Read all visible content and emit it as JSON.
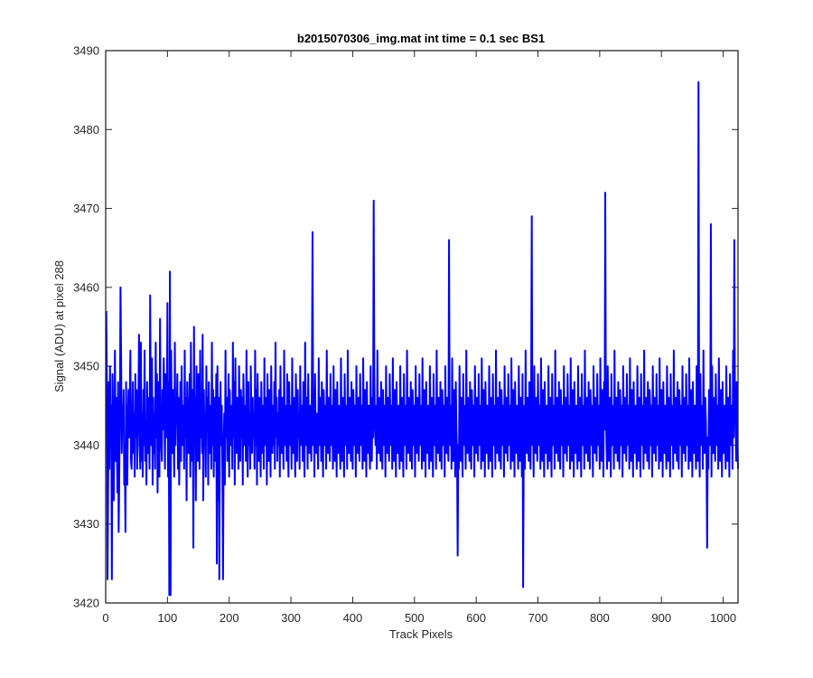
{
  "chart_data": {
    "type": "line",
    "title": "b2015070306_img.mat int time = 0.1 sec   BS1",
    "xlabel": "Track Pixels",
    "ylabel": "Signal (ADU) at pixel 288",
    "xlim": [
      0,
      1024
    ],
    "ylim": [
      3420,
      3490
    ],
    "xticks": [
      0,
      100,
      200,
      300,
      400,
      500,
      600,
      700,
      800,
      900,
      1000
    ],
    "yticks": [
      3420,
      3430,
      3440,
      3450,
      3460,
      3470,
      3480,
      3490
    ],
    "grid": false,
    "line_color": "#0000ff",
    "series": [
      {
        "x_start": 1,
        "x_step": 1,
        "values": [
          3457,
          3447,
          3423,
          3435,
          3448,
          3437,
          3450,
          3440,
          3445,
          3442,
          3449,
          3438,
          3433,
          3444,
          3452,
          3438,
          3446,
          3441,
          3434,
          3448,
          3429,
          3436,
          3444,
          3460,
          3451,
          3439,
          3445,
          3442,
          3447,
          3435,
          3438,
          3429,
          3448,
          3440,
          3435,
          3443,
          3447,
          3441,
          3446,
          3452,
          3438,
          3437,
          3443,
          3448,
          3439,
          3444,
          3436,
          3449,
          3441,
          3447,
          3437,
          3442,
          3446,
          3454,
          3440,
          3437,
          3453,
          3438,
          3444,
          3436,
          3447,
          3440,
          3452,
          3438,
          3443,
          3435,
          3448,
          3441,
          3439,
          3446,
          3437,
          3459,
          3445,
          3440,
          3451,
          3435,
          3446,
          3439,
          3444,
          3437,
          3453,
          3441,
          3449,
          3434,
          3448,
          3441,
          3436,
          3456,
          3443,
          3440,
          3438,
          3447,
          3442,
          3451,
          3445,
          3437,
          3449,
          3441,
          3444,
          3458,
          3436,
          3448,
          3440,
          3462,
          3421,
          3452,
          3444,
          3439,
          3447,
          3441,
          3436,
          3453,
          3440,
          3445,
          3443,
          3449,
          3437,
          3446,
          3435,
          3441,
          3448,
          3438,
          3450,
          3443,
          3440,
          3445,
          3437,
          3452,
          3441,
          3446,
          3433,
          3448,
          3441,
          3439,
          3444,
          3449,
          3436,
          3453,
          3442,
          3438,
          3447,
          3427,
          3455,
          3440,
          3446,
          3433,
          3450,
          3441,
          3438,
          3449,
          3443,
          3437,
          3452,
          3441,
          3445,
          3439,
          3454,
          3433,
          3447,
          3440,
          3444,
          3436,
          3450,
          3442,
          3446,
          3435,
          3448,
          3441,
          3439,
          3445,
          3437,
          3453,
          3440,
          3447,
          3436,
          3446,
          3442,
          3438,
          3449,
          3425,
          3450,
          3433,
          3446,
          3423,
          3442,
          3448,
          3440,
          3445,
          3437,
          3451,
          3439,
          3444,
          3435,
          3452,
          3441,
          3446,
          3438,
          3442,
          3449,
          3436,
          3447,
          3440,
          3443,
          3445,
          3437,
          3453,
          3441,
          3448,
          3435,
          3451,
          3441,
          3439,
          3446,
          3444,
          3437,
          3450,
          3442,
          3438,
          3447,
          3441,
          3446,
          3435,
          3449,
          3443,
          3440,
          3445,
          3438,
          3452,
          3441,
          3436,
          3448,
          3440,
          3444,
          3437,
          3450,
          3443,
          3439,
          3446,
          3441,
          3444,
          3437,
          3452,
          3440,
          3447,
          3435,
          3449,
          3443,
          3438,
          3446,
          3441,
          3436,
          3448,
          3442,
          3439,
          3445,
          3437,
          3451,
          3440,
          3443,
          3446,
          3435,
          3449,
          3441,
          3438,
          3447,
          3444,
          3436,
          3450,
          3442,
          3439,
          3445,
          3440,
          3448,
          3437,
          3453,
          3441,
          3446,
          3438,
          3444,
          3440,
          3447,
          3436,
          3450,
          3443,
          3439,
          3446,
          3441,
          3437,
          3452,
          3440,
          3445,
          3443,
          3438,
          3449,
          3441,
          3436,
          3448,
          3444,
          3440,
          3445,
          3437,
          3451,
          3442,
          3439,
          3446,
          3440,
          3436,
          3449,
          3443,
          3438,
          3447,
          3441,
          3444,
          3437,
          3450,
          3442,
          3440,
          3445,
          3438,
          3448,
          3441,
          3436,
          3453,
          3444,
          3440,
          3446,
          3437,
          3449,
          3442,
          3439,
          3445,
          3441,
          3438,
          3450,
          3443,
          3440,
          3447,
          3436,
          3449,
          3442,
          3439,
          3444,
          3441,
          3437,
          3451,
          3440,
          3446,
          3443,
          3438,
          3448,
          3441,
          3436,
          3447,
          3444,
          3440,
          3445,
          3437,
          3452,
          3442,
          3439,
          3446,
          3441,
          3438,
          3449,
          3443,
          3440,
          3445,
          3437,
          3450,
          3441,
          3438,
          3447,
          3444,
          3436,
          3448,
          3442,
          3439,
          3445,
          3440,
          3437,
          3451,
          3443,
          3438,
          3446,
          3441,
          3436,
          3449,
          3442,
          3440,
          3445,
          3437,
          3452,
          3441,
          3439,
          3446,
          3443,
          3438,
          3448,
          3441,
          3437,
          3447,
          3444,
          3440,
          3445,
          3436,
          3450,
          3442,
          3439,
          3446,
          3441,
          3438,
          3449,
          3443,
          3440,
          3445,
          3437,
          3451,
          3441,
          3438,
          3447,
          3444,
          3436,
          3448,
          3442,
          3439,
          3445,
          3440,
          3437,
          3450,
          3443,
          3438,
          3446,
          3441,
          3436,
          3449,
          3442,
          3440,
          3445,
          3437,
          3452,
          3441,
          3439,
          3446,
          3443,
          3438,
          3448,
          3441,
          3437,
          3447,
          3444,
          3440,
          3445,
          3436,
          3450,
          3442,
          3439,
          3446,
          3441,
          3438,
          3449,
          3443,
          3440,
          3445,
          3437,
          3451,
          3441,
          3438,
          3447,
          3444,
          3436,
          3448,
          3442,
          3439,
          3445,
          3440,
          3437,
          3450,
          3443,
          3438,
          3446,
          3441,
          3436,
          3449,
          3442,
          3440,
          3445,
          3437,
          3452,
          3441,
          3439,
          3446,
          3443,
          3438,
          3448,
          3441,
          3437,
          3447,
          3444,
          3440,
          3445,
          3436,
          3450,
          3442,
          3439,
          3446,
          3441,
          3438,
          3449,
          3443,
          3440,
          3445,
          3437,
          3451,
          3441,
          3438,
          3447,
          3444,
          3436,
          3448,
          3442,
          3439,
          3445,
          3440,
          3437,
          3450,
          3443,
          3438,
          3446,
          3441,
          3436,
          3449,
          3442,
          3440,
          3445,
          3437,
          3452,
          3441,
          3439,
          3446,
          3443,
          3438,
          3448,
          3441,
          3437,
          3447,
          3444,
          3440,
          3445,
          3436,
          3450,
          3442,
          3439,
          3446,
          3441,
          3438,
          3449,
          3443,
          3440,
          3445,
          3437,
          3451,
          3441,
          3438,
          3447,
          3444,
          3436,
          3448,
          3442,
          3439,
          3445,
          3440,
          3437,
          3450,
          3443,
          3438,
          3446,
          3441,
          3436,
          3449,
          3442,
          3440,
          3445,
          3437,
          3452,
          3441,
          3439,
          3446,
          3443,
          3438,
          3448,
          3441,
          3437,
          3447,
          3444,
          3440,
          3445,
          3436,
          3450,
          3442,
          3439,
          3446,
          3441,
          3438,
          3449,
          3443,
          3440,
          3445,
          3437,
          3451,
          3441,
          3438,
          3447,
          3444,
          3436,
          3448,
          3442,
          3439,
          3445,
          3440,
          3437,
          3450,
          3443,
          3438,
          3446,
          3441,
          3436,
          3449,
          3442,
          3440,
          3445,
          3437,
          3452,
          3441,
          3439,
          3446,
          3443,
          3438,
          3448,
          3441,
          3437,
          3447,
          3444,
          3440,
          3445,
          3436,
          3450,
          3442,
          3439,
          3446,
          3441,
          3438,
          3449,
          3443,
          3440,
          3445,
          3437,
          3451,
          3441,
          3438,
          3447,
          3444,
          3436,
          3448,
          3442,
          3439,
          3445,
          3440,
          3437,
          3450,
          3443,
          3438,
          3446,
          3441,
          3436,
          3449,
          3442,
          3440,
          3445,
          3437,
          3452,
          3441,
          3439,
          3446,
          3443,
          3438,
          3448,
          3441,
          3437,
          3447,
          3444,
          3440,
          3445,
          3436,
          3450,
          3442,
          3439,
          3446,
          3441,
          3438,
          3449,
          3443,
          3440,
          3445,
          3437,
          3451,
          3441,
          3438,
          3447,
          3444,
          3436,
          3448,
          3442,
          3439,
          3445,
          3440,
          3437,
          3450,
          3443,
          3438,
          3446,
          3441,
          3436,
          3449,
          3442,
          3440,
          3445,
          3437,
          3452,
          3441,
          3439,
          3446,
          3443,
          3438,
          3448,
          3441,
          3437,
          3447,
          3444,
          3440,
          3445,
          3436,
          3450,
          3442,
          3439,
          3446,
          3441,
          3438,
          3449,
          3443,
          3440,
          3445,
          3437,
          3451,
          3441,
          3438,
          3447,
          3444,
          3436,
          3448,
          3442,
          3439,
          3445,
          3440,
          3437,
          3450,
          3443,
          3438,
          3446,
          3441,
          3436,
          3449,
          3442,
          3440,
          3445,
          3437,
          3452,
          3441,
          3439,
          3446,
          3443,
          3438,
          3448,
          3441,
          3437,
          3447,
          3444,
          3440,
          3445,
          3436,
          3450,
          3442,
          3439,
          3446,
          3441,
          3438,
          3449,
          3443,
          3440,
          3445,
          3437,
          3451,
          3441,
          3438,
          3447,
          3444,
          3436,
          3448,
          3442,
          3439,
          3445,
          3440,
          3437,
          3450,
          3443,
          3438,
          3446,
          3441,
          3436,
          3449,
          3442,
          3440,
          3445,
          3437,
          3452,
          3441,
          3439,
          3446,
          3443,
          3438,
          3448,
          3441,
          3437,
          3447,
          3444,
          3440,
          3445,
          3436,
          3450,
          3442,
          3439,
          3446,
          3441,
          3438,
          3449,
          3443,
          3440,
          3445,
          3437,
          3451,
          3441,
          3438,
          3447,
          3444,
          3436,
          3448,
          3442,
          3439,
          3445,
          3440,
          3437,
          3450,
          3443,
          3438,
          3446,
          3441,
          3436,
          3449,
          3442,
          3440,
          3445,
          3437,
          3452,
          3441,
          3439,
          3446,
          3443,
          3438,
          3448,
          3441,
          3437,
          3447,
          3444,
          3440,
          3445,
          3436,
          3450,
          3442,
          3439,
          3446,
          3441,
          3438,
          3449,
          3443,
          3440,
          3445,
          3437,
          3451,
          3441,
          3438,
          3447,
          3444,
          3436,
          3448,
          3442,
          3439,
          3445,
          3440,
          3437,
          3450,
          3443,
          3438,
          3446,
          3441,
          3436,
          3449,
          3442,
          3440,
          3445,
          3437,
          3452,
          3441,
          3439,
          3446,
          3443,
          3438,
          3448,
          3441,
          3437,
          3447,
          3444,
          3440,
          3445,
          3436,
          3450,
          3442,
          3439,
          3446,
          3441,
          3438,
          3449,
          3443,
          3440,
          3445,
          3437,
          3451,
          3441,
          3438,
          3447,
          3444,
          3436,
          3448,
          3442,
          3439,
          3445,
          3440,
          3437,
          3450,
          3443,
          3438,
          3446,
          3441,
          3436,
          3449,
          3442,
          3440,
          3445,
          3437,
          3452,
          3441,
          3439,
          3446,
          3443,
          3438,
          3448,
          3441,
          3437,
          3447,
          3444,
          3440,
          3445,
          3436,
          3450,
          3442,
          3439,
          3446,
          3441,
          3438,
          3449,
          3443,
          3440,
          3445,
          3437,
          3451,
          3441,
          3438,
          3447,
          3444,
          3436,
          3448,
          3442,
          3439,
          3445,
          3440,
          3437,
          3450,
          3443,
          3438,
          3446,
          3441,
          3436,
          3449,
          3442,
          3440,
          3445,
          3437,
          3452,
          3441,
          3439,
          3446,
          3443,
          3438,
          3448,
          3441,
          3437,
          3447,
          3444,
          3440,
          3445,
          3436,
          3450,
          3442,
          3439,
          3446,
          3441,
          3438,
          3449,
          3443,
          3440,
          3445,
          3437,
          3451,
          3441,
          3438,
          3447,
          3444,
          3436,
          3448,
          3442,
          3439,
          3445,
          3440,
          3437,
          3450,
          3443,
          3438,
          3446,
          3441,
          3436,
          3449,
          3442,
          3440,
          3445,
          3437,
          3452,
          3441,
          3439,
          3446,
          3443,
          3438,
          3448,
          3441,
          3437,
          3447,
          3444,
          3440,
          3445,
          3436,
          3450,
          3442,
          3439,
          3446,
          3441,
          3438,
          3449,
          3443,
          3440,
          3445,
          3437,
          3451,
          3441,
          3438,
          3447,
          3444,
          3436,
          3448,
          3442,
          3439,
          3445
        ]
      }
    ],
    "spikes": [
      {
        "x": 434,
        "y": 3471
      },
      {
        "x": 809,
        "y": 3472
      },
      {
        "x": 960,
        "y": 3486
      },
      {
        "x": 335,
        "y": 3467
      },
      {
        "x": 690,
        "y": 3469
      },
      {
        "x": 556,
        "y": 3466
      },
      {
        "x": 980,
        "y": 3468
      },
      {
        "x": 1018,
        "y": 3466
      },
      {
        "x": 103,
        "y": 3421
      },
      {
        "x": 676,
        "y": 3422
      },
      {
        "x": 10,
        "y": 3423
      },
      {
        "x": 190,
        "y": 3423
      },
      {
        "x": 570,
        "y": 3426
      },
      {
        "x": 974,
        "y": 3427
      }
    ]
  }
}
